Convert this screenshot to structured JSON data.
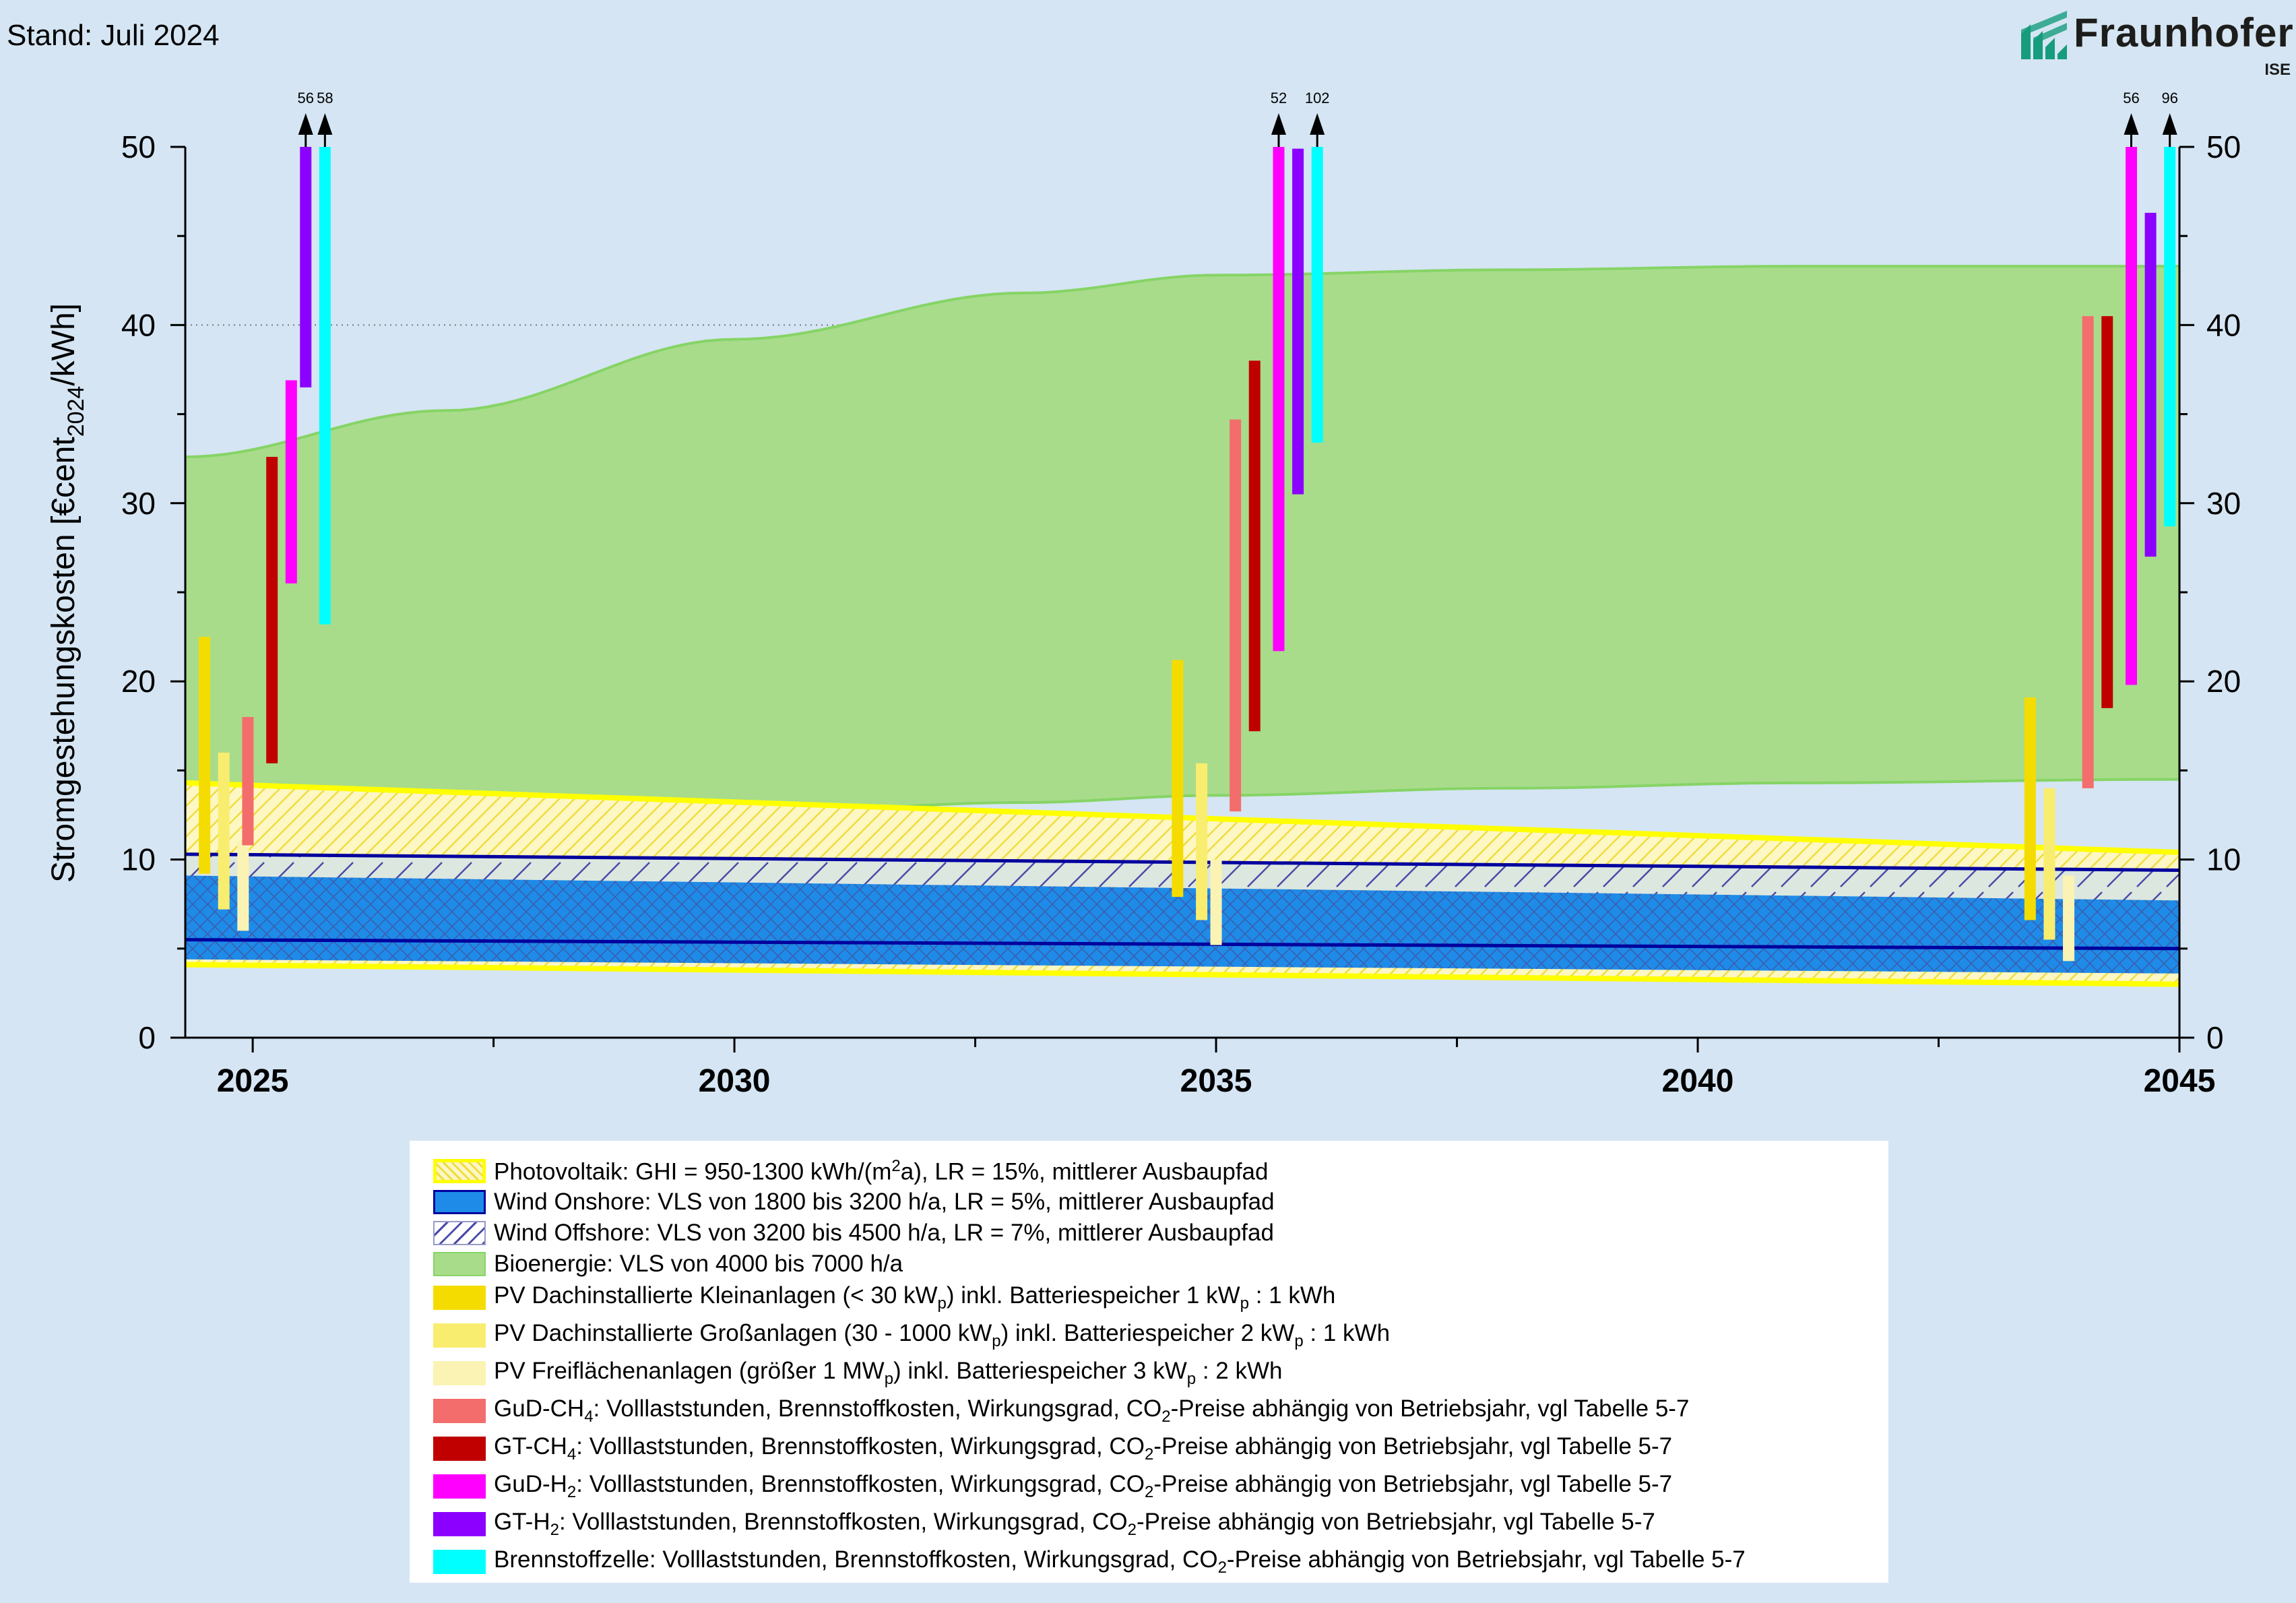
{
  "header": {
    "stand": "Stand: Juli 2024",
    "logo_word": "Fraunhofer",
    "logo_sub": "ISE"
  },
  "colors": {
    "background": "#d5e5f3",
    "pv_outline": "#ffff00",
    "wind_onshore": "#1e8be8",
    "wind_offshore_line": "#00009e",
    "bio": "#a8dc8a",
    "bio_line": "#86d466",
    "pv_small": "#f5dc00",
    "pv_large": "#f9ed70",
    "pv_ground": "#fbf3b4",
    "gud_ch4": "#f36d6d",
    "gt_ch4": "#c00000",
    "gud_h2": "#ff00ff",
    "gt_h2": "#8b00ff",
    "fuel_cell": "#00ffff"
  },
  "chart_data": {
    "type": "area",
    "ylabel_main": "Stromgestehungskosten [€cent",
    "ylabel_sub": "2024",
    "ylabel_end": "/kWh]",
    "xlim": [
      2024.3,
      2045
    ],
    "ylim": [
      0,
      50
    ],
    "x_ticks": [
      "2025",
      "2030",
      "2035",
      "2040",
      "2045"
    ],
    "x_tick_values": [
      2025,
      2030,
      2035,
      2040,
      2045
    ],
    "y_ticks": [
      "0",
      "10",
      "20",
      "30",
      "40",
      "50"
    ],
    "y_tick_values": [
      0,
      10,
      20,
      30,
      40,
      50
    ],
    "grid": "dotted horizontal at 10, 30, 40",
    "bands": [
      {
        "name": "Bioenergie",
        "x": [
          2024.3,
          2027,
          2030,
          2033,
          2035,
          2038,
          2041,
          2045
        ],
        "lower": [
          11.3,
          11.9,
          12.6,
          13.2,
          13.6,
          14.0,
          14.3,
          14.5
        ],
        "upper": [
          32.6,
          35.2,
          39.2,
          41.8,
          42.8,
          43.1,
          43.3,
          43.3
        ]
      },
      {
        "name": "Photovoltaik",
        "x": [
          2024.3,
          2045
        ],
        "lower": [
          4.1,
          3.0
        ],
        "upper": [
          14.3,
          10.4
        ]
      },
      {
        "name": "Wind Offshore",
        "x": [
          2024.3,
          2045
        ],
        "lower": [
          5.5,
          5.0
        ],
        "upper": [
          10.3,
          9.4
        ]
      },
      {
        "name": "Wind Onshore",
        "x": [
          2024.3,
          2045
        ],
        "lower": [
          4.4,
          3.6
        ],
        "upper": [
          9.1,
          7.7
        ]
      }
    ],
    "bars": [
      {
        "name": "PV Dachinstallierte Kleinanlagen",
        "x": 2024.5,
        "low": 9.2,
        "high": 22.5
      },
      {
        "name": "PV Dachinstallierte Großanlagen",
        "x": 2024.7,
        "low": 7.2,
        "high": 16.0
      },
      {
        "name": "PV Freiflächenanlagen",
        "x": 2024.9,
        "low": 6.0,
        "high": 11.0
      },
      {
        "name": "GuD-CH4",
        "x": 2024.95,
        "low": 10.8,
        "high": 18.0
      },
      {
        "name": "GT-CH4",
        "x": 2025.2,
        "low": 15.4,
        "high": 32.6
      },
      {
        "name": "GuD-H2",
        "x": 2025.4,
        "low": 25.5,
        "high": 36.9
      },
      {
        "name": "GT-H2",
        "x": 2025.55,
        "low": 36.5,
        "high": 50,
        "arrow": "56"
      },
      {
        "name": "Brennstoffzelle",
        "x": 2025.75,
        "low": 23.2,
        "high": 50,
        "arrow": "58"
      },
      {
        "name": "PV Dachinstallierte Kleinanlagen",
        "x": 2034.6,
        "low": 7.9,
        "high": 21.2
      },
      {
        "name": "PV Dachinstallierte Großanlagen",
        "x": 2034.85,
        "low": 6.6,
        "high": 15.4
      },
      {
        "name": "PV Freiflächenanlagen",
        "x": 2035.0,
        "low": 5.2,
        "high": 10.0
      },
      {
        "name": "GuD-CH4",
        "x": 2035.2,
        "low": 12.7,
        "high": 34.7
      },
      {
        "name": "GT-CH4",
        "x": 2035.4,
        "low": 17.2,
        "high": 38.0
      },
      {
        "name": "GuD-H2",
        "x": 2035.65,
        "low": 21.7,
        "high": 50,
        "arrow": "52"
      },
      {
        "name": "GT-H2",
        "x": 2035.85,
        "low": 30.5,
        "high": 49.9
      },
      {
        "name": "Brennstoffzelle",
        "x": 2036.05,
        "low": 33.4,
        "high": 50,
        "arrow": "102"
      },
      {
        "name": "PV Dachinstallierte Kleinanlagen",
        "x": 2043.45,
        "low": 6.6,
        "high": 19.1
      },
      {
        "name": "PV Dachinstallierte Großanlagen",
        "x": 2043.65,
        "low": 5.5,
        "high": 14.0
      },
      {
        "name": "PV Freiflächenanlagen",
        "x": 2043.85,
        "low": 4.3,
        "high": 9.1
      },
      {
        "name": "GuD-CH4",
        "x": 2044.05,
        "low": 14.0,
        "high": 40.5
      },
      {
        "name": "GT-CH4",
        "x": 2044.25,
        "low": 18.5,
        "high": 40.5
      },
      {
        "name": "GuD-H2",
        "x": 2044.5,
        "low": 19.8,
        "high": 50,
        "arrow": "56"
      },
      {
        "name": "GT-H2",
        "x": 2044.7,
        "low": 27.0,
        "high": 46.3
      },
      {
        "name": "Brennstoffzelle",
        "x": 2044.9,
        "low": 28.7,
        "high": 50,
        "arrow": "96"
      }
    ]
  },
  "legend": [
    {
      "key": "pv",
      "pre": "Photovoltaik: GHI = 950-1300 kWh/(m",
      "sup": "2",
      "post": "a), LR = 15%, mittlerer Ausbaupfad"
    },
    {
      "key": "onshore",
      "pre": "Wind Onshore: VLS von 1800 bis 3200 h/a, LR = 5%, mittlerer Ausbaupfad"
    },
    {
      "key": "offshore",
      "pre": "Wind Offshore: VLS von 3200 bis 4500 h/a, LR = 7%, mittlerer Ausbaupfad"
    },
    {
      "key": "bio",
      "pre": "Bioenergie: VLS von 4000 bis 7000 h/a"
    },
    {
      "key": "pv_small",
      "pre": "PV Dachinstallierte Kleinanlagen (< 30 kW",
      "sub": "p",
      "post": ") inkl. Batteriespeicher 1 kW",
      "sub2": "p",
      "post2": " : 1 kWh"
    },
    {
      "key": "pv_large",
      "pre": "PV Dachinstallierte Großanlagen (30 - 1000 kW",
      "sub": "p",
      "post": ") inkl. Batteriespeicher 2 kW",
      "sub2": "p",
      "post2": " : 1 kWh"
    },
    {
      "key": "pv_ground",
      "pre": "PV Freiflächenanlagen (größer 1 MW",
      "sub": "p",
      "post": ") inkl. Batteriespeicher 3 kW",
      "sub2": "p",
      "post2": " : 2 kWh"
    },
    {
      "key": "gud_ch4",
      "pre": "GuD-CH",
      "sub": "4",
      "post": ": Volllaststunden, Brennstoffkosten, Wirkungsgrad, CO",
      "sub2": "2",
      "post2": "-Preise abhängig von Betriebsjahr, vgl Tabelle 5-7"
    },
    {
      "key": "gt_ch4",
      "pre": "GT-CH",
      "sub": "4",
      "post": ": Volllaststunden, Brennstoffkosten, Wirkungsgrad, CO",
      "sub2": "2",
      "post2": "-Preise abhängig von Betriebsjahr, vgl Tabelle 5-7"
    },
    {
      "key": "gud_h2",
      "pre": "GuD-H",
      "sub": "2",
      "post": ": Volllaststunden, Brennstoffkosten, Wirkungsgrad, CO",
      "sub2": "2",
      "post2": "-Preise abhängig von Betriebsjahr, vgl Tabelle 5-7"
    },
    {
      "key": "gt_h2",
      "pre": "GT-H",
      "sub": "2",
      "post": ": Volllaststunden, Brennstoffkosten, Wirkungsgrad, CO",
      "sub2": "2",
      "post2": "-Preise abhängig von Betriebsjahr, vgl Tabelle 5-7"
    },
    {
      "key": "fuel_cell",
      "pre": "Brennstoffzelle: Volllaststunden, Brennstoffkosten, Wirkungsgrad, CO",
      "sub": "2",
      "post": "-Preise abhängig von Betriebsjahr, vgl Tabelle 5-7"
    }
  ]
}
